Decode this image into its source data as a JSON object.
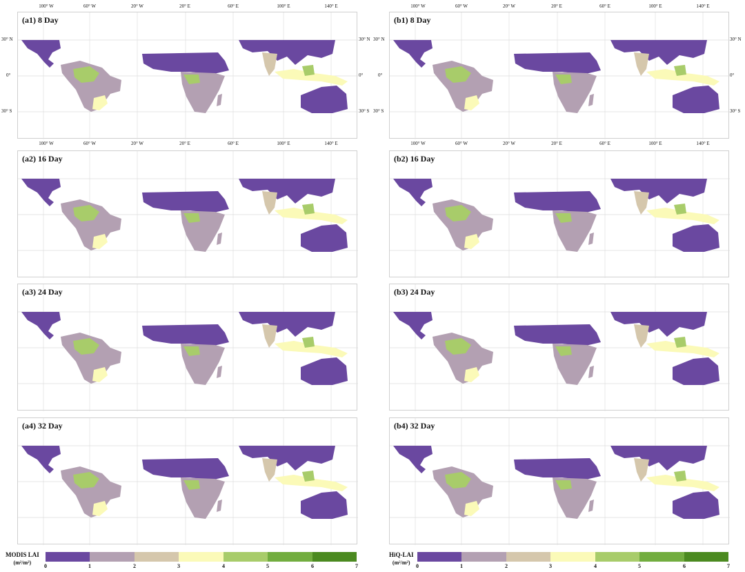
{
  "panels": {
    "a1": {
      "title": "(a1) 8 Day"
    },
    "a2": {
      "title": "(a2) 16 Day"
    },
    "a3": {
      "title": "(a3) 24 Day"
    },
    "a4": {
      "title": "(a4) 32 Day"
    },
    "b1": {
      "title": "(b1) 8 Day"
    },
    "b2": {
      "title": "(b2) 16 Day"
    },
    "b3": {
      "title": "(b3) 24 Day"
    },
    "b4": {
      "title": "(b4) 32 Day"
    }
  },
  "axes": {
    "lon_labels": [
      "100° W",
      "60° W",
      "20° W",
      "20° E",
      "60° E",
      "100° E",
      "140° E"
    ],
    "lat_labels": [
      "30° N",
      "0°",
      "30° S"
    ]
  },
  "colorbars": {
    "modis": {
      "title_line1": "MODIS  LAI",
      "title_line2": "(m²/m²)"
    },
    "hiq": {
      "title_line1": "HiQ-LAI",
      "title_line2": "(m²/m²)"
    },
    "ticks": [
      "0",
      "1",
      "2",
      "3",
      "4",
      "5",
      "6",
      "7"
    ],
    "colors": [
      "#6a48a0",
      "#b3a0b2",
      "#d5c7ac",
      "#fbfab8",
      "#a8cc6a",
      "#72ad3f",
      "#4b8a20"
    ]
  },
  "map_colors": {
    "ocean": "#ffffff",
    "gridline": "#dedede",
    "lai_0_1": "#6a48a0",
    "lai_1_2": "#b3a0b2",
    "lai_2_3": "#d5c7ac",
    "lai_3_4": "#fbfab8",
    "lai_4_5": "#a8cc6a",
    "lai_5_6": "#72ad3f"
  }
}
